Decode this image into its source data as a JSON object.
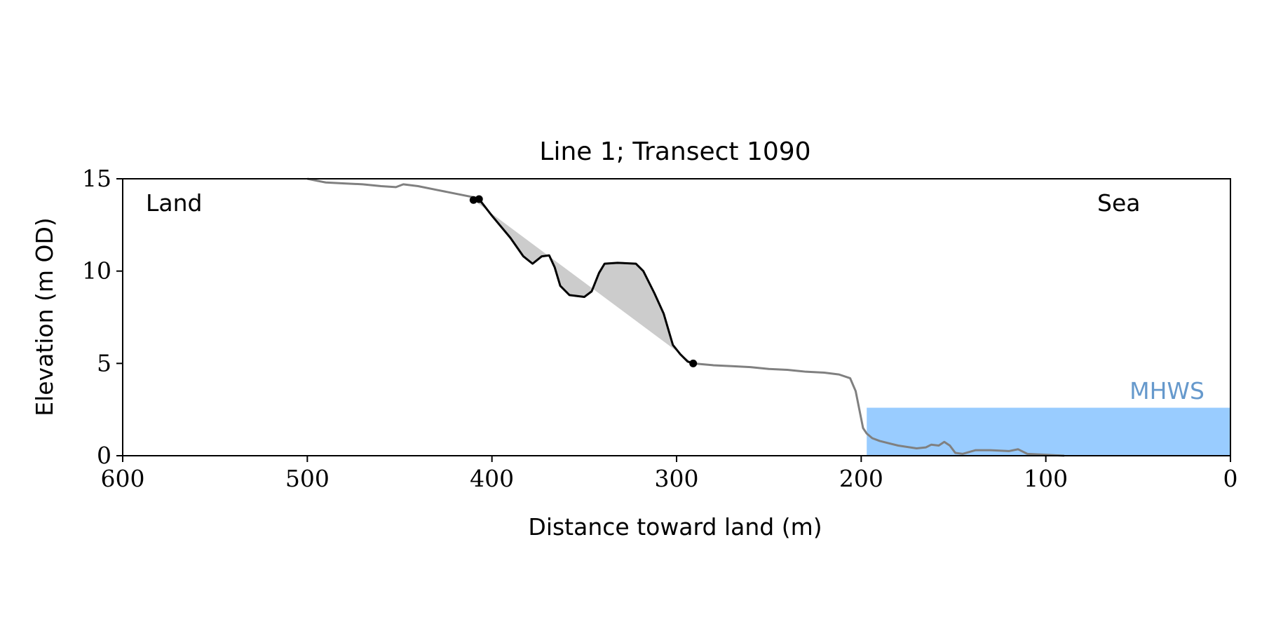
{
  "chart_data": {
    "type": "line",
    "title": "Line 1; Transect 1090",
    "xlabel": "Distance toward land (m)",
    "ylabel": "Elevation (m OD)",
    "xlim": [
      600,
      0
    ],
    "ylim": [
      0,
      15
    ],
    "x_reversed": true,
    "xticks": [
      600,
      500,
      400,
      300,
      200,
      100,
      0
    ],
    "yticks": [
      0,
      5,
      10,
      15
    ],
    "grid": false,
    "annotations": {
      "land": "Land",
      "sea": "Sea",
      "mhws": "MHWS"
    },
    "mhws": {
      "level": 2.6,
      "x_from": 197,
      "x_to": 0
    },
    "colors": {
      "profile": "#808080",
      "feature": "#000000",
      "fill": "#cccccc",
      "water": "#99ccff",
      "mhws_label": "#6699cc"
    },
    "profile": [
      [
        500,
        15.0
      ],
      [
        490,
        14.8
      ],
      [
        480,
        14.75
      ],
      [
        470,
        14.7
      ],
      [
        460,
        14.6
      ],
      [
        452,
        14.55
      ],
      [
        448,
        14.7
      ],
      [
        440,
        14.6
      ],
      [
        430,
        14.4
      ],
      [
        420,
        14.2
      ],
      [
        410,
        14.0
      ],
      [
        408,
        13.9
      ],
      [
        291,
        5.0
      ],
      [
        280,
        4.9
      ],
      [
        270,
        4.85
      ],
      [
        260,
        4.8
      ],
      [
        250,
        4.7
      ],
      [
        240,
        4.65
      ],
      [
        230,
        4.55
      ],
      [
        220,
        4.5
      ],
      [
        212,
        4.4
      ],
      [
        206,
        4.2
      ],
      [
        203,
        3.5
      ],
      [
        201,
        2.5
      ],
      [
        199,
        1.5
      ],
      [
        197,
        1.2
      ],
      [
        194,
        0.95
      ],
      [
        190,
        0.8
      ],
      [
        180,
        0.55
      ],
      [
        170,
        0.4
      ],
      [
        165,
        0.45
      ],
      [
        162,
        0.6
      ],
      [
        158,
        0.55
      ],
      [
        155,
        0.75
      ],
      [
        152,
        0.55
      ],
      [
        149,
        0.15
      ],
      [
        145,
        0.1
      ],
      [
        138,
        0.3
      ],
      [
        130,
        0.3
      ],
      [
        120,
        0.25
      ],
      [
        115,
        0.35
      ],
      [
        110,
        0.1
      ],
      [
        100,
        0.05
      ],
      [
        90,
        0.0
      ]
    ],
    "feature": [
      [
        410,
        13.85
      ],
      [
        407,
        13.9
      ],
      [
        400,
        13.0
      ],
      [
        390,
        11.8
      ],
      [
        383,
        10.8
      ],
      [
        378,
        10.4
      ],
      [
        373,
        10.8
      ],
      [
        369,
        10.85
      ],
      [
        366,
        10.2
      ],
      [
        363,
        9.2
      ],
      [
        358,
        8.7
      ],
      [
        350,
        8.6
      ],
      [
        346,
        8.9
      ],
      [
        342,
        9.9
      ],
      [
        339,
        10.4
      ],
      [
        332,
        10.45
      ],
      [
        322,
        10.4
      ],
      [
        318,
        10.0
      ],
      [
        312,
        8.8
      ],
      [
        307,
        7.7
      ],
      [
        302,
        6.0
      ],
      [
        298,
        5.5
      ],
      [
        294,
        5.1
      ],
      [
        291,
        5.0
      ]
    ],
    "feature_endpoints": [
      [
        410,
        13.85
      ],
      [
        291,
        5.0
      ]
    ]
  }
}
